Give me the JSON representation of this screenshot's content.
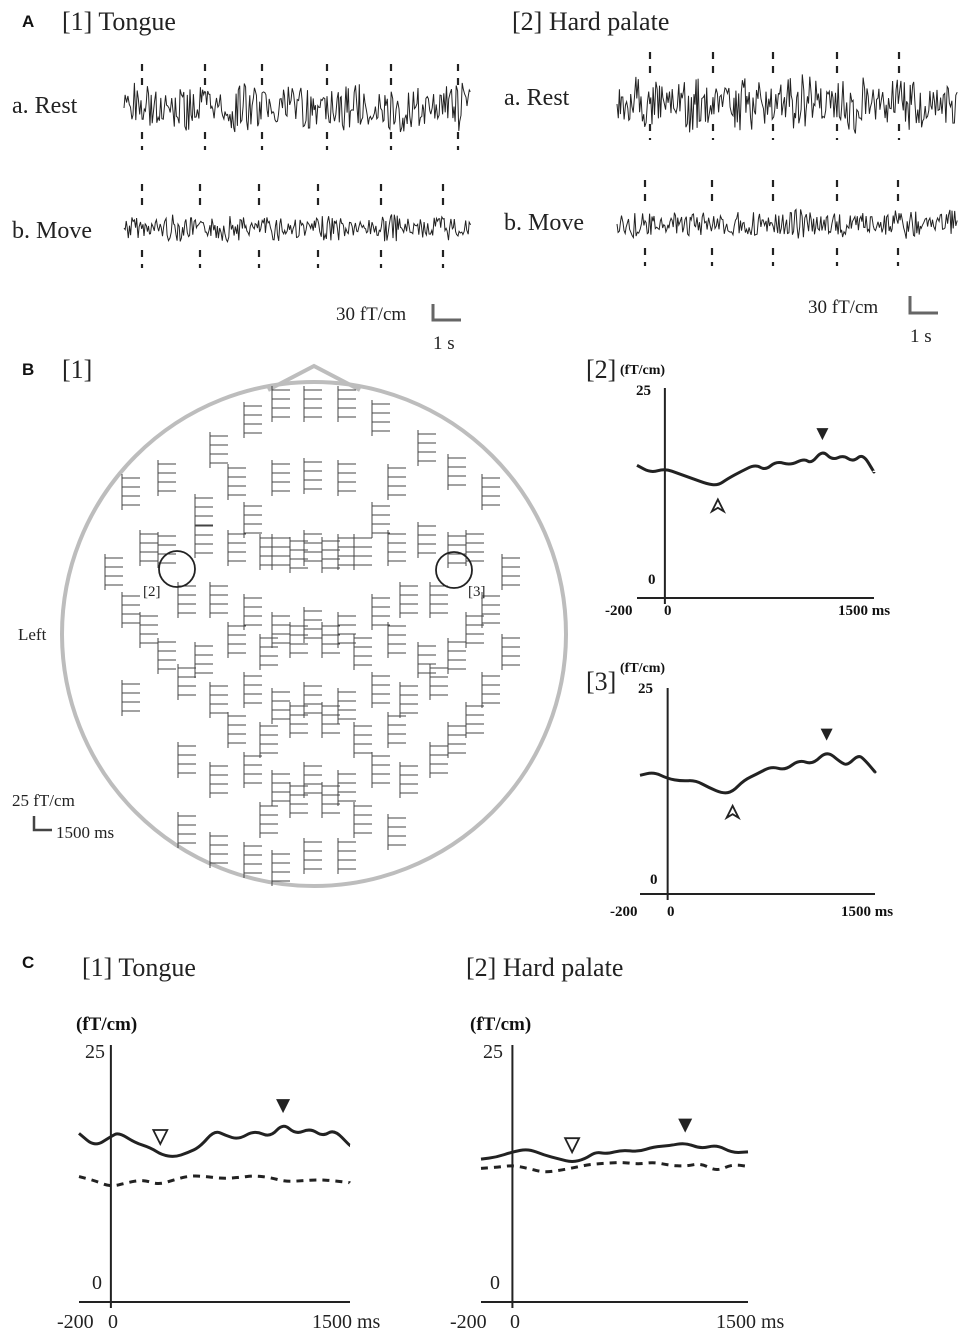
{
  "panel_a": {
    "letter": "A",
    "tongue_title": "[1] Tongue",
    "palate_title": "[2] Hard palate",
    "rest_label": "a. Rest",
    "move_label": "b. Move",
    "scale_amplitude": "30 fT/cm",
    "scale_time": "1 s"
  },
  "panel_b": {
    "letter": "B",
    "map_label": "[1]",
    "left_label": "Left",
    "scale_amplitude": "25 fT/cm",
    "scale_time": "1500 ms",
    "circle_label_2": "[2]",
    "circle_label_3": "[3]",
    "plot2_label": "[2]",
    "plot3_label": "[3]",
    "unit": "(fT/cm)",
    "y_top": "25",
    "y_bottom": "0",
    "x_min": "-200",
    "x_zero": "0",
    "x_max": "1500 ms"
  },
  "panel_c": {
    "letter": "C",
    "tongue_title": "[1] Tongue",
    "palate_title": "[2] Hard palate",
    "unit": "(fT/cm)",
    "y_top": "25",
    "y_bottom": "0",
    "x_min": "-200",
    "x_zero": "0",
    "x_max": "1500 ms"
  },
  "chart_data": [
    {
      "id": "B2",
      "type": "line",
      "ylabel": "(fT/cm)",
      "xlim": [
        -200,
        1500
      ],
      "ylim": [
        0,
        25
      ],
      "series": [
        {
          "values": [
            [
              -200,
              15.8
            ],
            [
              -100,
              14.9
            ],
            [
              0,
              15.4
            ],
            [
              100,
              14.8
            ],
            [
              200,
              14.2
            ],
            [
              300,
              13.6
            ],
            [
              380,
              13.4
            ],
            [
              450,
              14.2
            ],
            [
              550,
              15.1
            ],
            [
              650,
              15.9
            ],
            [
              720,
              15.2
            ],
            [
              800,
              16.3
            ],
            [
              900,
              15.8
            ],
            [
              1000,
              16.6
            ],
            [
              1050,
              16.0
            ],
            [
              1130,
              17.6
            ],
            [
              1200,
              16.4
            ],
            [
              1280,
              17.0
            ],
            [
              1350,
              16.2
            ],
            [
              1420,
              17.2
            ],
            [
              1500,
              15.0
            ]
          ]
        }
      ],
      "annotations": [
        {
          "marker": "open-arrowhead",
          "x": 380
        },
        {
          "marker": "filled-arrowhead",
          "x": 1130
        }
      ]
    },
    {
      "id": "B3",
      "type": "line",
      "ylabel": "(fT/cm)",
      "xlim": [
        -200,
        1500
      ],
      "ylim": [
        0,
        25
      ],
      "series": [
        {
          "values": [
            [
              -200,
              14.4
            ],
            [
              -100,
              14.8
            ],
            [
              0,
              14.0
            ],
            [
              100,
              13.7
            ],
            [
              200,
              13.8
            ],
            [
              300,
              12.9
            ],
            [
              400,
              12.2
            ],
            [
              470,
              12.4
            ],
            [
              550,
              13.8
            ],
            [
              650,
              14.6
            ],
            [
              750,
              15.5
            ],
            [
              850,
              15.0
            ],
            [
              950,
              16.3
            ],
            [
              1050,
              15.7
            ],
            [
              1150,
              17.4
            ],
            [
              1250,
              16.0
            ],
            [
              1300,
              15.6
            ],
            [
              1380,
              16.9
            ],
            [
              1430,
              16.2
            ],
            [
              1500,
              14.8
            ]
          ]
        }
      ],
      "annotations": [
        {
          "marker": "open-arrowhead",
          "x": 470
        },
        {
          "marker": "filled-arrowhead",
          "x": 1150
        }
      ]
    },
    {
      "id": "C1",
      "type": "line",
      "title": "[1] Tongue",
      "ylabel": "(fT/cm)",
      "xlim": [
        -200,
        1500
      ],
      "ylim": [
        0,
        25
      ],
      "series": [
        {
          "style": "solid",
          "values": [
            [
              -200,
              16.4
            ],
            [
              -100,
              15.1
            ],
            [
              0,
              16.1
            ],
            [
              50,
              16.5
            ],
            [
              150,
              15.5
            ],
            [
              250,
              15.0
            ],
            [
              320,
              14.3
            ],
            [
              400,
              14.1
            ],
            [
              480,
              14.5
            ],
            [
              560,
              15.1
            ],
            [
              650,
              16.7
            ],
            [
              720,
              16.2
            ],
            [
              800,
              15.8
            ],
            [
              900,
              16.7
            ],
            [
              1000,
              16.0
            ],
            [
              1080,
              17.4
            ],
            [
              1160,
              16.3
            ],
            [
              1250,
              16.9
            ],
            [
              1330,
              16.1
            ],
            [
              1400,
              16.8
            ],
            [
              1500,
              15.2
            ]
          ]
        },
        {
          "style": "dashed",
          "values": [
            [
              -200,
              12.2
            ],
            [
              -100,
              11.8
            ],
            [
              0,
              11.2
            ],
            [
              100,
              11.6
            ],
            [
              200,
              11.9
            ],
            [
              300,
              11.4
            ],
            [
              400,
              11.9
            ],
            [
              500,
              12.3
            ],
            [
              600,
              12.2
            ],
            [
              700,
              12.0
            ],
            [
              800,
              12.1
            ],
            [
              900,
              12.3
            ],
            [
              1000,
              12.1
            ],
            [
              1100,
              11.7
            ],
            [
              1200,
              11.8
            ],
            [
              1300,
              11.9
            ],
            [
              1400,
              11.8
            ],
            [
              1500,
              11.6
            ]
          ]
        }
      ],
      "annotations": [
        {
          "marker": "open-arrowhead",
          "x": 310
        },
        {
          "marker": "filled-arrowhead",
          "x": 1080
        }
      ]
    },
    {
      "id": "C2",
      "type": "line",
      "title": "[2] Hard palate",
      "ylabel": "(fT/cm)",
      "xlim": [
        -200,
        1500
      ],
      "ylim": [
        0,
        25
      ],
      "series": [
        {
          "style": "solid",
          "values": [
            [
              -200,
              13.9
            ],
            [
              -100,
              14.1
            ],
            [
              0,
              14.6
            ],
            [
              100,
              14.9
            ],
            [
              200,
              14.3
            ],
            [
              300,
              13.9
            ],
            [
              380,
              13.6
            ],
            [
              460,
              13.9
            ],
            [
              530,
              14.6
            ],
            [
              600,
              14.4
            ],
            [
              700,
              14.8
            ],
            [
              800,
              14.6
            ],
            [
              900,
              15.1
            ],
            [
              1000,
              15.2
            ],
            [
              1100,
              15.5
            ],
            [
              1200,
              14.9
            ],
            [
              1300,
              15.3
            ],
            [
              1400,
              14.5
            ],
            [
              1500,
              14.6
            ]
          ]
        },
        {
          "style": "dashed",
          "values": [
            [
              -200,
              13.0
            ],
            [
              -100,
              13.1
            ],
            [
              0,
              13.3
            ],
            [
              100,
              13.0
            ],
            [
              200,
              12.6
            ],
            [
              300,
              12.8
            ],
            [
              400,
              13.1
            ],
            [
              500,
              13.4
            ],
            [
              600,
              13.5
            ],
            [
              700,
              13.6
            ],
            [
              800,
              13.4
            ],
            [
              900,
              13.6
            ],
            [
              1000,
              13.3
            ],
            [
              1100,
              13.2
            ],
            [
              1200,
              13.5
            ],
            [
              1300,
              12.7
            ],
            [
              1400,
              13.4
            ],
            [
              1500,
              13.2
            ]
          ]
        }
      ],
      "annotations": [
        {
          "marker": "open-arrowhead",
          "x": 380
        },
        {
          "marker": "filled-arrowhead",
          "x": 1100
        }
      ]
    }
  ]
}
